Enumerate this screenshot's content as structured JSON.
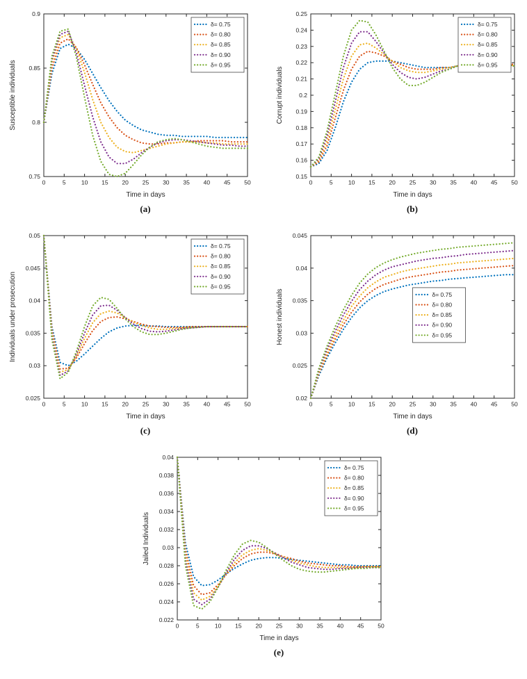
{
  "page": {
    "background": "#ffffff"
  },
  "colors": {
    "series": [
      "#0072BD",
      "#D95319",
      "#EDB120",
      "#7E2F8E",
      "#77AC30"
    ],
    "axis": "#262626",
    "legend_border": "#444444"
  },
  "legend_labels": [
    "δ= 0.75",
    "δ= 0.80",
    "δ= 0.85",
    "δ= 0.90",
    "δ= 0.95"
  ],
  "x_days": [
    0,
    2,
    4,
    6,
    8,
    10,
    12,
    14,
    16,
    18,
    20,
    22,
    24,
    26,
    28,
    30,
    32,
    34,
    36,
    38,
    40,
    42,
    44,
    46,
    48,
    50
  ],
  "chart_data": [
    {
      "type": "line",
      "line_style": "dotted",
      "caption": "(a)",
      "xlabel": "Time in days",
      "ylabel": "Susceptible individuals",
      "xlim": [
        0,
        50
      ],
      "ylim": [
        0.75,
        0.9
      ],
      "xticks": [
        0,
        5,
        10,
        15,
        20,
        25,
        30,
        35,
        40,
        45,
        50
      ],
      "yticks": [
        0.75,
        0.8,
        0.85,
        0.9
      ],
      "ytick_labels": [
        "0.75",
        "0.8",
        "0.85",
        "0.9"
      ],
      "legend_pos": "ne",
      "series": [
        {
          "name": "δ= 0.75",
          "values": [
            0.8,
            0.845,
            0.868,
            0.872,
            0.868,
            0.858,
            0.845,
            0.832,
            0.82,
            0.81,
            0.802,
            0.797,
            0.793,
            0.791,
            0.789,
            0.788,
            0.788,
            0.787,
            0.787,
            0.787,
            0.787,
            0.786,
            0.786,
            0.786,
            0.786,
            0.786
          ]
        },
        {
          "name": "δ= 0.80",
          "values": [
            0.8,
            0.85,
            0.873,
            0.877,
            0.869,
            0.853,
            0.835,
            0.818,
            0.805,
            0.795,
            0.788,
            0.784,
            0.781,
            0.78,
            0.78,
            0.781,
            0.781,
            0.782,
            0.782,
            0.783,
            0.783,
            0.783,
            0.783,
            0.782,
            0.782,
            0.782
          ]
        },
        {
          "name": "δ= 0.85",
          "values": [
            0.8,
            0.855,
            0.878,
            0.881,
            0.868,
            0.846,
            0.821,
            0.8,
            0.786,
            0.777,
            0.773,
            0.772,
            0.774,
            0.776,
            0.778,
            0.78,
            0.781,
            0.782,
            0.782,
            0.782,
            0.781,
            0.781,
            0.78,
            0.78,
            0.78,
            0.78
          ]
        },
        {
          "name": "δ= 0.90",
          "values": [
            0.8,
            0.858,
            0.881,
            0.884,
            0.864,
            0.834,
            0.805,
            0.782,
            0.768,
            0.762,
            0.762,
            0.766,
            0.772,
            0.777,
            0.781,
            0.783,
            0.784,
            0.784,
            0.783,
            0.782,
            0.781,
            0.78,
            0.779,
            0.779,
            0.778,
            0.778
          ]
        },
        {
          "name": "δ= 0.95",
          "values": [
            0.8,
            0.861,
            0.884,
            0.886,
            0.86,
            0.823,
            0.788,
            0.764,
            0.752,
            0.75,
            0.753,
            0.761,
            0.77,
            0.777,
            0.782,
            0.784,
            0.785,
            0.784,
            0.782,
            0.78,
            0.778,
            0.777,
            0.776,
            0.776,
            0.776,
            0.776
          ]
        }
      ]
    },
    {
      "type": "line",
      "line_style": "dotted",
      "caption": "(b)",
      "xlabel": "Time in days",
      "ylabel": "Corrupt individuals",
      "xlim": [
        0,
        50
      ],
      "ylim": [
        0.15,
        0.25
      ],
      "xticks": [
        0,
        5,
        10,
        15,
        20,
        25,
        30,
        35,
        40,
        45,
        50
      ],
      "yticks": [
        0.15,
        0.16,
        0.17,
        0.18,
        0.19,
        0.2,
        0.21,
        0.22,
        0.23,
        0.24,
        0.25
      ],
      "ytick_labels": [
        "0.15",
        "0.16",
        "0.17",
        "0.18",
        "0.19",
        "0.2",
        "0.21",
        "0.22",
        "0.23",
        "0.24",
        "0.25"
      ],
      "legend_pos": "ne",
      "series": [
        {
          "name": "δ= 0.75",
          "values": [
            0.156,
            0.158,
            0.166,
            0.18,
            0.196,
            0.208,
            0.216,
            0.22,
            0.221,
            0.221,
            0.221,
            0.22,
            0.219,
            0.218,
            0.217,
            0.217,
            0.217,
            0.217,
            0.218,
            0.218,
            0.218,
            0.218,
            0.218,
            0.218,
            0.218,
            0.218
          ]
        },
        {
          "name": "δ= 0.80",
          "values": [
            0.156,
            0.159,
            0.169,
            0.186,
            0.203,
            0.216,
            0.224,
            0.227,
            0.226,
            0.224,
            0.221,
            0.219,
            0.217,
            0.216,
            0.216,
            0.216,
            0.217,
            0.217,
            0.218,
            0.218,
            0.218,
            0.219,
            0.219,
            0.219,
            0.219,
            0.219
          ]
        },
        {
          "name": "δ= 0.85",
          "values": [
            0.156,
            0.16,
            0.172,
            0.191,
            0.21,
            0.224,
            0.231,
            0.232,
            0.229,
            0.225,
            0.221,
            0.217,
            0.215,
            0.214,
            0.214,
            0.215,
            0.216,
            0.217,
            0.218,
            0.218,
            0.219,
            0.219,
            0.219,
            0.219,
            0.219,
            0.218
          ]
        },
        {
          "name": "δ= 0.90",
          "values": [
            0.156,
            0.161,
            0.175,
            0.196,
            0.217,
            0.232,
            0.239,
            0.239,
            0.233,
            0.226,
            0.219,
            0.214,
            0.211,
            0.21,
            0.211,
            0.213,
            0.215,
            0.216,
            0.218,
            0.219,
            0.219,
            0.22,
            0.219,
            0.219,
            0.219,
            0.218
          ]
        },
        {
          "name": "δ= 0.95",
          "values": [
            0.156,
            0.162,
            0.178,
            0.201,
            0.224,
            0.24,
            0.246,
            0.245,
            0.237,
            0.227,
            0.217,
            0.21,
            0.206,
            0.206,
            0.208,
            0.211,
            0.214,
            0.216,
            0.218,
            0.219,
            0.22,
            0.22,
            0.22,
            0.219,
            0.219,
            0.218
          ]
        }
      ]
    },
    {
      "type": "line",
      "line_style": "dotted",
      "caption": "(c)",
      "xlabel": "Time in days",
      "ylabel": "Individuals under prosecution",
      "xlim": [
        0,
        50
      ],
      "ylim": [
        0.025,
        0.05
      ],
      "xticks": [
        0,
        5,
        10,
        15,
        20,
        25,
        30,
        35,
        40,
        45,
        50
      ],
      "yticks": [
        0.025,
        0.03,
        0.035,
        0.04,
        0.045,
        0.05
      ],
      "ytick_labels": [
        "0.025",
        "0.03",
        "0.035",
        "0.04",
        "0.045",
        "0.05"
      ],
      "legend_pos": "ne",
      "series": [
        {
          "name": "δ= 0.75",
          "values": [
            0.05,
            0.036,
            0.0305,
            0.03,
            0.0307,
            0.0318,
            0.033,
            0.0342,
            0.0352,
            0.0358,
            0.0361,
            0.0362,
            0.0362,
            0.0361,
            0.0361,
            0.036,
            0.036,
            0.036,
            0.036,
            0.036,
            0.036,
            0.036,
            0.036,
            0.036,
            0.036,
            0.036
          ]
        },
        {
          "name": "δ= 0.80",
          "values": [
            0.05,
            0.0355,
            0.0295,
            0.0296,
            0.0312,
            0.0334,
            0.0354,
            0.0368,
            0.0374,
            0.0375,
            0.0372,
            0.0368,
            0.0364,
            0.0361,
            0.036,
            0.0359,
            0.0359,
            0.0359,
            0.036,
            0.036,
            0.036,
            0.036,
            0.036,
            0.036,
            0.036,
            0.036
          ]
        },
        {
          "name": "δ= 0.85",
          "values": [
            0.05,
            0.035,
            0.029,
            0.0294,
            0.0315,
            0.0342,
            0.0366,
            0.038,
            0.0384,
            0.0381,
            0.0374,
            0.0367,
            0.0362,
            0.0358,
            0.0356,
            0.0356,
            0.0357,
            0.0358,
            0.0359,
            0.0359,
            0.036,
            0.036,
            0.036,
            0.036,
            0.036,
            0.036
          ]
        },
        {
          "name": "δ= 0.90",
          "values": [
            0.05,
            0.0345,
            0.0285,
            0.0292,
            0.0318,
            0.035,
            0.0378,
            0.0392,
            0.0393,
            0.0385,
            0.0374,
            0.0364,
            0.0357,
            0.0353,
            0.0352,
            0.0353,
            0.0355,
            0.0357,
            0.0358,
            0.0359,
            0.036,
            0.036,
            0.036,
            0.036,
            0.036,
            0.036
          ]
        },
        {
          "name": "δ= 0.95",
          "values": [
            0.05,
            0.034,
            0.028,
            0.029,
            0.0322,
            0.036,
            0.0392,
            0.0405,
            0.0402,
            0.0388,
            0.0372,
            0.036,
            0.0352,
            0.0348,
            0.0348,
            0.035,
            0.0353,
            0.0356,
            0.0358,
            0.0359,
            0.036,
            0.036,
            0.036,
            0.036,
            0.036,
            0.036
          ]
        }
      ]
    },
    {
      "type": "line",
      "line_style": "dotted",
      "caption": "(d)",
      "xlabel": "Time in days",
      "ylabel": "Honest  individuals",
      "xlim": [
        0,
        50
      ],
      "ylim": [
        0.02,
        0.045
      ],
      "xticks": [
        0,
        5,
        10,
        15,
        20,
        25,
        30,
        35,
        40,
        45,
        50
      ],
      "yticks": [
        0.02,
        0.025,
        0.03,
        0.035,
        0.04,
        0.045
      ],
      "ytick_labels": [
        "0.02",
        "0.025",
        "0.03",
        "0.035",
        "0.04",
        "0.045"
      ],
      "legend_pos": "right-center",
      "legend_frac": [
        0.5,
        0.32
      ],
      "series": [
        {
          "name": "δ= 0.75",
          "values": [
            0.02,
            0.0235,
            0.0262,
            0.0285,
            0.0306,
            0.0324,
            0.0339,
            0.035,
            0.0358,
            0.0364,
            0.0368,
            0.0371,
            0.0374,
            0.0376,
            0.0378,
            0.038,
            0.0381,
            0.0383,
            0.0384,
            0.0385,
            0.0386,
            0.0387,
            0.0388,
            0.0389,
            0.039,
            0.039
          ]
        },
        {
          "name": "δ= 0.80",
          "values": [
            0.02,
            0.0238,
            0.0266,
            0.0291,
            0.0313,
            0.0332,
            0.0348,
            0.036,
            0.0369,
            0.0375,
            0.0379,
            0.0383,
            0.0386,
            0.0388,
            0.039,
            0.0392,
            0.0394,
            0.0395,
            0.0397,
            0.0398,
            0.0399,
            0.04,
            0.0401,
            0.0402,
            0.0403,
            0.0404
          ]
        },
        {
          "name": "δ= 0.85",
          "values": [
            0.02,
            0.024,
            0.027,
            0.0297,
            0.032,
            0.0341,
            0.0357,
            0.037,
            0.0379,
            0.0386,
            0.039,
            0.0394,
            0.0397,
            0.0399,
            0.0401,
            0.0403,
            0.0405,
            0.0406,
            0.0408,
            0.0409,
            0.041,
            0.0411,
            0.0412,
            0.0413,
            0.0414,
            0.0415
          ]
        },
        {
          "name": "δ= 0.90",
          "values": [
            0.02,
            0.0243,
            0.0275,
            0.0303,
            0.0328,
            0.0349,
            0.0367,
            0.038,
            0.039,
            0.0397,
            0.0402,
            0.0405,
            0.0408,
            0.0411,
            0.0413,
            0.0415,
            0.0416,
            0.0418,
            0.0419,
            0.0421,
            0.0422,
            0.0423,
            0.0424,
            0.0425,
            0.0426,
            0.0427
          ]
        },
        {
          "name": "δ= 0.95",
          "values": [
            0.02,
            0.0246,
            0.028,
            0.031,
            0.0336,
            0.0358,
            0.0377,
            0.0391,
            0.0401,
            0.0408,
            0.0413,
            0.0417,
            0.042,
            0.0423,
            0.0425,
            0.0427,
            0.0429,
            0.043,
            0.0432,
            0.0433,
            0.0434,
            0.0435,
            0.0436,
            0.0437,
            0.0438,
            0.0439
          ]
        }
      ]
    },
    {
      "type": "line",
      "line_style": "dotted",
      "caption": "(e)",
      "xlabel": "Time in days",
      "ylabel": "Jailed Individuals",
      "xlim": [
        0,
        50
      ],
      "ylim": [
        0.022,
        0.04
      ],
      "xticks": [
        0,
        5,
        10,
        15,
        20,
        25,
        30,
        35,
        40,
        45,
        50
      ],
      "yticks": [
        0.022,
        0.024,
        0.026,
        0.028,
        0.03,
        0.032,
        0.034,
        0.036,
        0.038,
        0.04
      ],
      "ytick_labels": [
        "0.022",
        "0.024",
        "0.026",
        "0.028",
        "0.03",
        "0.032",
        "0.034",
        "0.036",
        "0.038",
        "0.04"
      ],
      "legend_pos": "ne",
      "series": [
        {
          "name": "δ= 0.75",
          "values": [
            0.04,
            0.0305,
            0.0268,
            0.0258,
            0.0259,
            0.0264,
            0.0271,
            0.0277,
            0.0282,
            0.0286,
            0.0288,
            0.0289,
            0.0289,
            0.0288,
            0.0287,
            0.0286,
            0.0285,
            0.0284,
            0.0283,
            0.0282,
            0.0281,
            0.0281,
            0.028,
            0.028,
            0.028,
            0.028
          ]
        },
        {
          "name": "δ= 0.80",
          "values": [
            0.04,
            0.0298,
            0.0258,
            0.0248,
            0.025,
            0.0259,
            0.027,
            0.028,
            0.0288,
            0.0293,
            0.0295,
            0.0295,
            0.0293,
            0.029,
            0.0288,
            0.0285,
            0.0283,
            0.0282,
            0.0281,
            0.028,
            0.028,
            0.0279,
            0.0279,
            0.0279,
            0.0279,
            0.0279
          ]
        },
        {
          "name": "δ= 0.85",
          "values": [
            0.04,
            0.0292,
            0.025,
            0.0242,
            0.0246,
            0.0257,
            0.0271,
            0.0283,
            0.0292,
            0.0297,
            0.0299,
            0.0297,
            0.0294,
            0.029,
            0.0286,
            0.0283,
            0.0281,
            0.0279,
            0.0278,
            0.0278,
            0.0278,
            0.0278,
            0.0278,
            0.0279,
            0.0279,
            0.0279
          ]
        },
        {
          "name": "δ= 0.90",
          "values": [
            0.04,
            0.0286,
            0.0243,
            0.0237,
            0.0243,
            0.0256,
            0.0272,
            0.0287,
            0.0297,
            0.0302,
            0.0302,
            0.0299,
            0.0294,
            0.0289,
            0.0284,
            0.0281,
            0.0278,
            0.0277,
            0.0276,
            0.0276,
            0.0277,
            0.0277,
            0.0278,
            0.0278,
            0.0278,
            0.0278
          ]
        },
        {
          "name": "δ= 0.95",
          "values": [
            0.04,
            0.028,
            0.0236,
            0.0232,
            0.024,
            0.0256,
            0.0275,
            0.0292,
            0.0304,
            0.0308,
            0.0306,
            0.03,
            0.0293,
            0.0286,
            0.028,
            0.0276,
            0.0274,
            0.0273,
            0.0273,
            0.0274,
            0.0275,
            0.0276,
            0.0277,
            0.0277,
            0.0278,
            0.0278
          ]
        }
      ]
    }
  ]
}
